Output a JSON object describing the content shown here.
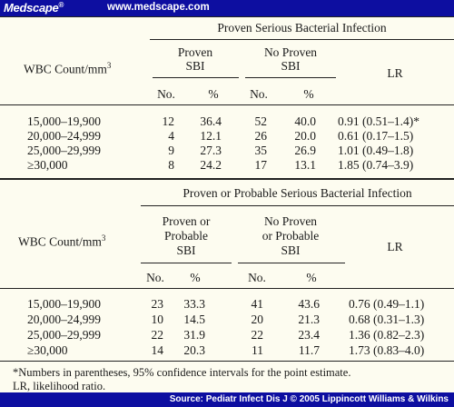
{
  "header": {
    "brand": "Medscape",
    "brand_mark": "®",
    "url": "www.medscape.com"
  },
  "table1": {
    "title": "Proven Serious Bacterial Infection",
    "row_header": "WBC Count/mm",
    "row_header_sup": "3",
    "group1": [
      "Proven",
      "SBI"
    ],
    "group2": [
      "No Proven",
      "SBI"
    ],
    "lr": "LR",
    "no": "No.",
    "pct": "%",
    "rows": [
      {
        "range": "15,000–19,900",
        "n1": "12",
        "p1": "36.4",
        "n2": "52",
        "p2": "40.0",
        "lr": "0.91 (0.51–1.4)*"
      },
      {
        "range": "20,000–24,999",
        "n1": "4",
        "p1": "12.1",
        "n2": "26",
        "p2": "20.0",
        "lr": "0.61 (0.17–1.5)"
      },
      {
        "range": "25,000–29,999",
        "n1": "9",
        "p1": "27.3",
        "n2": "35",
        "p2": "26.9",
        "lr": "1.01 (0.49–1.8)"
      },
      {
        "range": "≥30,000",
        "n1": "8",
        "p1": "24.2",
        "n2": "17",
        "p2": "13.1",
        "lr": "1.85 (0.74–3.9)"
      }
    ]
  },
  "table2": {
    "title": "Proven or Probable Serious Bacterial Infection",
    "row_header": "WBC Count/mm",
    "row_header_sup": "3",
    "group1": [
      "Proven or",
      "Probable",
      "SBI"
    ],
    "group2": [
      "No Proven",
      "or Probable",
      "SBI"
    ],
    "lr": "LR",
    "no": "No.",
    "pct": "%",
    "rows": [
      {
        "range": "15,000–19,900",
        "n1": "23",
        "p1": "33.3",
        "n2": "41",
        "p2": "43.6",
        "lr": "0.76 (0.49–1.1)"
      },
      {
        "range": "20,000–24,999",
        "n1": "10",
        "p1": "14.5",
        "n2": "20",
        "p2": "21.3",
        "lr": "0.68 (0.31–1.3)"
      },
      {
        "range": "25,000–29,999",
        "n1": "22",
        "p1": "31.9",
        "n2": "22",
        "p2": "23.4",
        "lr": "1.36 (0.82–2.3)"
      },
      {
        "range": "≥30,000",
        "n1": "14",
        "p1": "20.3",
        "n2": "11",
        "p2": "11.7",
        "lr": "1.73 (0.83–4.0)"
      }
    ]
  },
  "footnotes": [
    "*Numbers in parentheses, 95% confidence intervals for the point estimate.",
    "LR, likelihood ratio."
  ],
  "source": "Source: Pediatr Infect Dis J © 2005 Lippincott Williams & Wilkins",
  "colors": {
    "bar": "#0d0ea0",
    "background": "#fdfcf0"
  }
}
